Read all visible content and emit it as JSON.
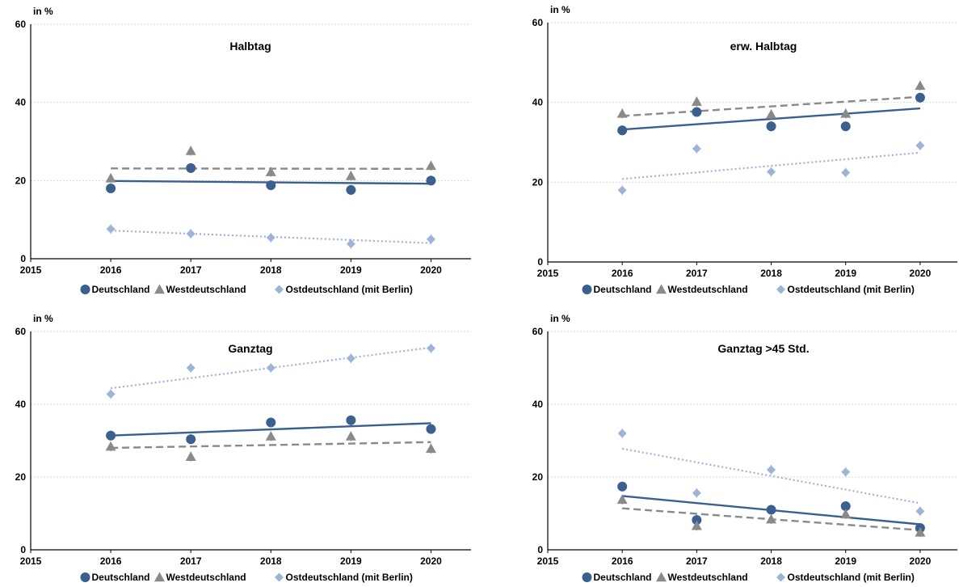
{
  "colors": {
    "Deutschland": "#3B5F8F",
    "Westdeutschland": "#8A8A8A",
    "Ostdeutschland": "#9DB4D8",
    "grid": "#D9D9D9",
    "axis": "#000000"
  },
  "chart_data": [
    {
      "type": "scatter",
      "title": "Halbtag",
      "ylabel": "in %",
      "xlim": [
        2015,
        2020.5
      ],
      "ylim": [
        0,
        60
      ],
      "xticks": [
        "2015",
        "2016",
        "2017",
        "2018",
        "2019",
        "2020"
      ],
      "yticks": [
        "0",
        "20",
        "40",
        "60"
      ],
      "grid": true,
      "legend": "bottom",
      "series": [
        {
          "name": "Deutschland",
          "marker": "circle",
          "trend": "solid",
          "x": [
            2016,
            2017,
            2018,
            2019,
            2020
          ],
          "y": [
            18.0,
            23.2,
            18.8,
            17.6,
            20.0
          ],
          "trend_y": [
            19.9,
            19.2
          ]
        },
        {
          "name": "Westdeutschland",
          "marker": "triangle",
          "trend": "dashed",
          "x": [
            2016,
            2017,
            2018,
            2019,
            2020
          ],
          "y": [
            20.6,
            27.6,
            22.2,
            21.2,
            23.8
          ],
          "trend_y": [
            23.1,
            23.0
          ]
        },
        {
          "name": "Ostdeutschland (mit Berlin)",
          "marker": "diamond",
          "trend": "dotted",
          "x": [
            2016,
            2017,
            2018,
            2019,
            2020
          ],
          "y": [
            7.6,
            6.4,
            5.4,
            3.8,
            5.0
          ],
          "trend_y": [
            7.2,
            4.0
          ]
        }
      ]
    },
    {
      "type": "scatter",
      "title": "erw. Halbtag",
      "ylabel": "in %",
      "xlim": [
        2015,
        2020.5
      ],
      "ylim": [
        0,
        60
      ],
      "xticks": [
        "2015",
        "2016",
        "2017",
        "2018",
        "2019",
        "2020"
      ],
      "yticks": [
        "0",
        "20",
        "40",
        "60"
      ],
      "grid": true,
      "legend": "bottom",
      "series": [
        {
          "name": "Deutschland",
          "marker": "circle",
          "trend": "solid",
          "x": [
            2016,
            2017,
            2018,
            2019,
            2020
          ],
          "y": [
            33.0,
            37.6,
            34.0,
            34.0,
            41.2
          ],
          "trend_y": [
            33.2,
            38.5
          ]
        },
        {
          "name": "Westdeutschland",
          "marker": "triangle",
          "trend": "dashed",
          "x": [
            2016,
            2017,
            2018,
            2019,
            2020
          ],
          "y": [
            37.2,
            40.2,
            37.0,
            37.2,
            44.2
          ],
          "trend_y": [
            36.6,
            41.4
          ]
        },
        {
          "name": "Ostdeutschland (mit Berlin)",
          "marker": "diamond",
          "trend": "dotted",
          "x": [
            2016,
            2017,
            2018,
            2019,
            2020
          ],
          "y": [
            18.0,
            28.4,
            22.6,
            22.4,
            29.2
          ],
          "trend_y": [
            20.8,
            27.4
          ]
        }
      ]
    },
    {
      "type": "scatter",
      "title": "Ganztag",
      "ylabel": "in %",
      "xlim": [
        2015,
        2020.5
      ],
      "ylim": [
        0,
        60
      ],
      "xticks": [
        "2015",
        "2016",
        "2017",
        "2018",
        "2019",
        "2020"
      ],
      "yticks": [
        "0",
        "20",
        "40",
        "60"
      ],
      "grid": true,
      "legend": "bottom",
      "series": [
        {
          "name": "Deutschland",
          "marker": "circle",
          "trend": "solid",
          "x": [
            2016,
            2017,
            2018,
            2019,
            2020
          ],
          "y": [
            31.4,
            30.4,
            35.0,
            35.6,
            33.2
          ],
          "trend_y": [
            31.4,
            34.8
          ]
        },
        {
          "name": "Westdeutschland",
          "marker": "triangle",
          "trend": "dashed",
          "x": [
            2016,
            2017,
            2018,
            2019,
            2020
          ],
          "y": [
            28.4,
            25.6,
            31.2,
            31.2,
            27.8
          ],
          "trend_y": [
            28.0,
            29.6
          ]
        },
        {
          "name": "Ostdeutschland (mit Berlin)",
          "marker": "diamond",
          "trend": "dotted",
          "x": [
            2016,
            2017,
            2018,
            2019,
            2020
          ],
          "y": [
            42.8,
            50.0,
            50.0,
            52.6,
            55.4
          ],
          "trend_y": [
            44.4,
            55.6
          ]
        }
      ]
    },
    {
      "type": "scatter",
      "title": "Ganztag >45 Std.",
      "ylabel": "in %",
      "xlim": [
        2015,
        2020.5
      ],
      "ylim": [
        0,
        60
      ],
      "xticks": [
        "2015",
        "2016",
        "2017",
        "2018",
        "2019",
        "2020"
      ],
      "yticks": [
        "0",
        "20",
        "40",
        "60"
      ],
      "grid": true,
      "legend": "bottom",
      "series": [
        {
          "name": "Deutschland",
          "marker": "circle",
          "trend": "solid",
          "x": [
            2016,
            2017,
            2018,
            2019,
            2020
          ],
          "y": [
            17.4,
            8.2,
            11.0,
            12.0,
            6.0
          ],
          "trend_y": [
            14.8,
            7.0
          ]
        },
        {
          "name": "Westdeutschland",
          "marker": "triangle",
          "trend": "dashed",
          "x": [
            2016,
            2017,
            2018,
            2019,
            2020
          ],
          "y": [
            13.8,
            6.6,
            8.4,
            9.8,
            4.8
          ],
          "trend_y": [
            11.4,
            5.4
          ]
        },
        {
          "name": "Ostdeutschland (mit Berlin)",
          "marker": "diamond",
          "trend": "dotted",
          "x": [
            2016,
            2017,
            2018,
            2019,
            2020
          ],
          "y": [
            32.0,
            15.6,
            22.0,
            21.4,
            10.6
          ],
          "trend_y": [
            27.8,
            12.8
          ]
        }
      ]
    }
  ]
}
